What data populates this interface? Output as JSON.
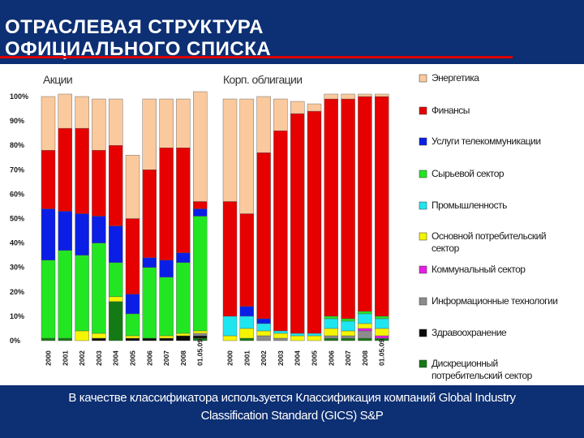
{
  "slide": {
    "title": "ОТРАСЛЕВАЯ СТРУКТУРА\nОФИЦИАЛЬНОГО СПИСКА",
    "footer": "В качестве классификатора используется Классификация компаний Global Industry\nClassification Standard (GICS) S&P"
  },
  "colors": {
    "background": "#0d2f73",
    "title_rule": "#dd0000",
    "panel": "#ffffff"
  },
  "chart_data": {
    "type": "bar",
    "stacked": true,
    "normalized": true,
    "ylim": [
      0,
      100
    ],
    "yticks": [
      "0%",
      "10%",
      "20%",
      "30%",
      "40%",
      "50%",
      "60%",
      "70%",
      "80%",
      "90%",
      "100%"
    ],
    "grid": false,
    "legend_position": "right",
    "series": [
      {
        "name": "Энергетика",
        "color": "#fac99d"
      },
      {
        "name": "Финансы",
        "color": "#e60000"
      },
      {
        "name": "Услуги телекоммуникации",
        "color": "#0a1ee6"
      },
      {
        "name": "Сырьевой сектор",
        "color": "#22e622"
      },
      {
        "name": "Промышленность",
        "color": "#1ee6f0"
      },
      {
        "name": "Основной потребительский сектор",
        "color": "#f5f500"
      },
      {
        "name": "Коммунальный сектор",
        "color": "#e61ee6"
      },
      {
        "name": "Информационные технологии",
        "color": "#8c8c8c"
      },
      {
        "name": "Здравоохранение",
        "color": "#0a0a0a"
      },
      {
        "name": "Дискреционный потребительский сектор",
        "color": "#147a14"
      }
    ],
    "panels": [
      {
        "title": "Акции",
        "categories": [
          "2000",
          "2001",
          "2002",
          "2003",
          "2004",
          "2005",
          "2006",
          "2007",
          "2008",
          "01.05.09"
        ],
        "stacks": [
          [
            0,
            0,
            0,
            32,
            0,
            0,
            0,
            0,
            0,
            1
          ],
          [
            0,
            0,
            0,
            36,
            0,
            0,
            0,
            0,
            0,
            1
          ],
          [
            0,
            0,
            0,
            31,
            0,
            4,
            0,
            0,
            0,
            0
          ],
          [
            0,
            0,
            0,
            37,
            0,
            2,
            0,
            0,
            1,
            0
          ],
          [
            0,
            0,
            0,
            14,
            0,
            2,
            0,
            0,
            0,
            16
          ],
          [
            0,
            0,
            0,
            9,
            0,
            1,
            0,
            0,
            1,
            0
          ],
          [
            0,
            0,
            0,
            29,
            0,
            0,
            0,
            0,
            1,
            0
          ],
          [
            0,
            0,
            0,
            24,
            0,
            1,
            0,
            0,
            1,
            0
          ],
          [
            0,
            0,
            0,
            29,
            0,
            1,
            0,
            0,
            2,
            0
          ],
          [
            0,
            0,
            0,
            47,
            0,
            1,
            0,
            1,
            1,
            1
          ]
        ],
        "values": {
          "Энергетика": [
            22,
            14,
            13,
            21,
            19,
            26,
            29,
            20,
            20,
            45
          ],
          "Финансы": [
            24,
            34,
            35,
            27,
            33,
            31,
            36,
            46,
            43,
            3
          ],
          "Услуги телекоммуникации": [
            21,
            16,
            17,
            11,
            15,
            8,
            4,
            7,
            4,
            3
          ]
        }
      },
      {
        "title": "Корп. облигации",
        "categories": [
          "2000",
          "2001",
          "2002",
          "2003",
          "2004",
          "2005",
          "2006",
          "2007",
          "2008",
          "01.05.09"
        ],
        "stacks": [
          [
            0,
            0,
            0,
            0,
            8,
            2,
            0,
            0,
            0,
            0
          ],
          [
            0,
            0,
            0,
            0,
            5,
            4,
            0,
            0,
            0,
            1
          ],
          [
            0,
            0,
            0,
            0,
            3,
            2,
            0,
            2,
            0,
            0
          ],
          [
            0,
            0,
            0,
            0,
            1,
            2,
            0,
            1,
            0,
            0
          ],
          [
            0,
            0,
            0,
            0,
            1,
            2,
            0,
            0,
            0,
            0
          ],
          [
            0,
            0,
            0,
            0,
            1,
            2,
            0,
            0,
            0,
            0
          ],
          [
            0,
            0,
            0,
            1,
            4,
            3,
            0,
            1,
            0,
            1
          ],
          [
            0,
            0,
            0,
            1,
            4,
            2,
            0,
            1,
            0,
            1
          ],
          [
            0,
            0,
            0,
            1,
            4,
            2,
            1,
            3,
            0,
            1
          ],
          [
            0,
            0,
            0,
            1,
            4,
            3,
            1,
            0,
            0,
            1
          ]
        ],
        "values": {
          "Энергетика": [
            42,
            47,
            23,
            13,
            5,
            3,
            2,
            2,
            1,
            1
          ],
          "Финансы": [
            47,
            38,
            68,
            82,
            90,
            91,
            89,
            90,
            88,
            90
          ],
          "Услуги телекоммуникации": [
            0,
            4,
            2,
            0,
            0,
            0,
            0,
            0,
            0,
            0
          ]
        }
      }
    ]
  }
}
